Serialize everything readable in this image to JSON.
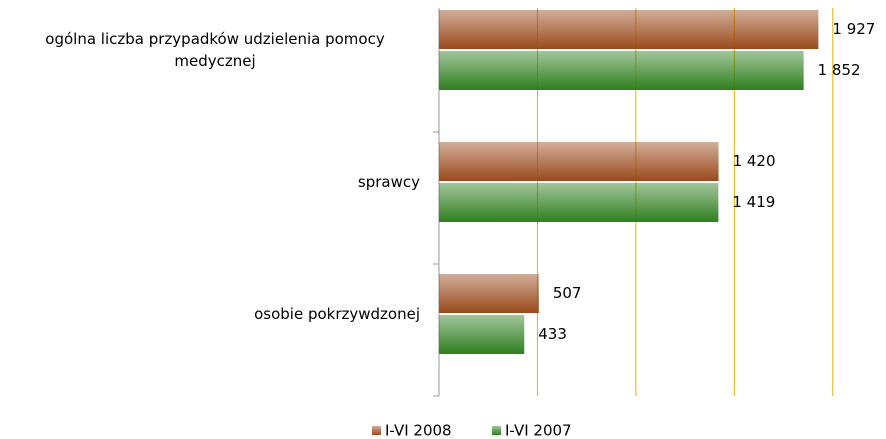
{
  "chart_data": {
    "type": "bar",
    "orientation": "horizontal",
    "categories": [
      "ogólna liczba przypadków udzielenia pomocy medycznej",
      "sprawcy",
      "osobie pokrzywdzonej"
    ],
    "series": [
      {
        "name": "I-VI 2008",
        "color": "#9a4a1c",
        "values": [
          1927,
          1420,
          507
        ],
        "value_labels": [
          "1 927",
          "1 420",
          "507"
        ]
      },
      {
        "name": "I-VI 2007",
        "color": "#2f7f1f",
        "values": [
          1852,
          1419,
          433
        ],
        "value_labels": [
          "1 852",
          "1 419",
          "433"
        ]
      }
    ],
    "xlim": [
      0,
      2250
    ],
    "xticks": [
      0,
      500,
      1000,
      1500,
      2000
    ],
    "grid": true,
    "grid_color": "#e8b400",
    "legend": "bottom"
  }
}
